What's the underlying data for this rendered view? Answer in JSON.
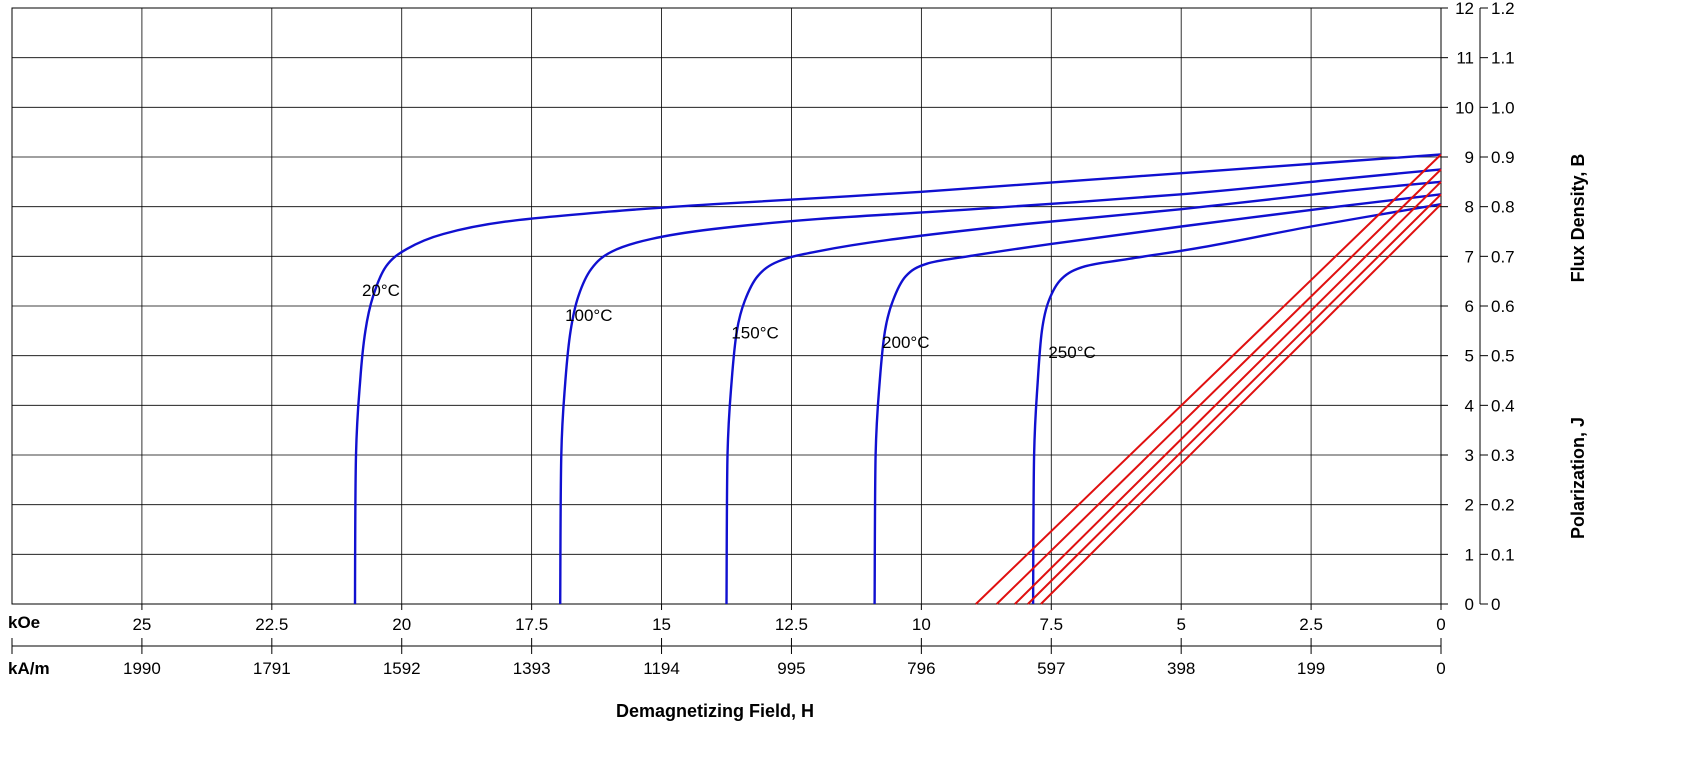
{
  "chart_data": {
    "type": "line",
    "title": "",
    "x_axis": {
      "title": "Demagnetizing Field, H",
      "direction": "reversed",
      "koe": {
        "unit_label": "kOe",
        "range": [
          27.5,
          0
        ],
        "ticks": [
          {
            "value": 25,
            "label": "25"
          },
          {
            "value": 22.5,
            "label": "22.5"
          },
          {
            "value": 20,
            "label": "20"
          },
          {
            "value": 17.5,
            "label": "17.5"
          },
          {
            "value": 15,
            "label": "15"
          },
          {
            "value": 12.5,
            "label": "12.5"
          },
          {
            "value": 10,
            "label": "10"
          },
          {
            "value": 7.5,
            "label": "7.5"
          },
          {
            "value": 5,
            "label": "5"
          },
          {
            "value": 2.5,
            "label": "2.5"
          },
          {
            "value": 0,
            "label": "0"
          }
        ]
      },
      "kam": {
        "unit_label": "kA/m",
        "ticks": [
          {
            "value_koe": 25,
            "label": "1990"
          },
          {
            "value_koe": 22.5,
            "label": "1791"
          },
          {
            "value_koe": 20,
            "label": "1592"
          },
          {
            "value_koe": 17.5,
            "label": "1393"
          },
          {
            "value_koe": 15,
            "label": "1194"
          },
          {
            "value_koe": 12.5,
            "label": "995"
          },
          {
            "value_koe": 10,
            "label": "796"
          },
          {
            "value_koe": 7.5,
            "label": "597"
          },
          {
            "value_koe": 5,
            "label": "398"
          },
          {
            "value_koe": 2.5,
            "label": "199"
          },
          {
            "value_koe": 0,
            "label": "0"
          }
        ]
      }
    },
    "y_axis": {
      "title_j": "Polarization,  J",
      "title_b": "Flux Density,  B",
      "range": [
        0,
        12
      ],
      "ticks_kg": [
        "0",
        "1",
        "2",
        "3",
        "4",
        "5",
        "6",
        "7",
        "8",
        "9",
        "10",
        "11",
        "12"
      ],
      "ticks_t": [
        "0",
        "0.1",
        "0.2",
        "0.3",
        "0.4",
        "0.5",
        "0.6",
        "0.7",
        "0.8",
        "0.9",
        "1.0",
        "1.1",
        "1.2"
      ]
    },
    "grid": true,
    "legend": "none",
    "colors": {
      "intrinsic": "#1010d0",
      "normal": "#e01010",
      "grid": "#000000"
    },
    "series": [
      {
        "name": "20°C",
        "kind": "intrinsic_J",
        "x": [
          20.9,
          20.88,
          20.8,
          20.7,
          20.55,
          20.3,
          19.9,
          19.2,
          18.0,
          16.0,
          14.0,
          10.0,
          6.0,
          2.0,
          0
        ],
        "y": [
          0,
          3.0,
          4.5,
          5.5,
          6.2,
          6.8,
          7.15,
          7.45,
          7.7,
          7.9,
          8.05,
          8.3,
          8.6,
          8.9,
          9.05
        ]
      },
      {
        "name": "100°C",
        "kind": "intrinsic_J",
        "x": [
          16.95,
          16.93,
          16.85,
          16.75,
          16.6,
          16.35,
          15.95,
          15.2,
          14.0,
          12.0,
          9.0,
          5.0,
          2.0,
          0
        ],
        "y": [
          0,
          3.0,
          4.5,
          5.5,
          6.2,
          6.75,
          7.1,
          7.35,
          7.55,
          7.75,
          7.95,
          8.25,
          8.55,
          8.75
        ]
      },
      {
        "name": "150°C",
        "kind": "intrinsic_J",
        "x": [
          13.75,
          13.73,
          13.65,
          13.55,
          13.4,
          13.15,
          12.75,
          12.0,
          10.5,
          8.0,
          5.0,
          2.0,
          0
        ],
        "y": [
          0,
          3.0,
          4.5,
          5.5,
          6.1,
          6.6,
          6.9,
          7.1,
          7.35,
          7.65,
          7.95,
          8.3,
          8.5
        ]
      },
      {
        "name": "200°C",
        "kind": "intrinsic_J",
        "x": [
          10.9,
          10.88,
          10.8,
          10.7,
          10.55,
          10.3,
          9.9,
          9.1,
          7.5,
          5.0,
          2.0,
          0
        ],
        "y": [
          0,
          3.0,
          4.5,
          5.5,
          6.1,
          6.6,
          6.85,
          7.0,
          7.25,
          7.6,
          8.0,
          8.25
        ]
      },
      {
        "name": "250°C",
        "kind": "intrinsic_J",
        "x": [
          7.85,
          7.83,
          7.76,
          7.68,
          7.55,
          7.3,
          6.85,
          6.0,
          4.5,
          2.5,
          0
        ],
        "y": [
          0,
          3.0,
          4.5,
          5.5,
          6.1,
          6.55,
          6.8,
          6.95,
          7.2,
          7.6,
          8.05
        ]
      },
      {
        "kind": "normal_B",
        "x": [
          0,
          8.95
        ],
        "y": [
          9.05,
          0
        ]
      },
      {
        "kind": "normal_B",
        "x": [
          0,
          8.55
        ],
        "y": [
          8.75,
          0
        ]
      },
      {
        "kind": "normal_B",
        "x": [
          0,
          8.2
        ],
        "y": [
          8.5,
          0
        ]
      },
      {
        "kind": "normal_B",
        "x": [
          0,
          7.95
        ],
        "y": [
          8.25,
          0
        ]
      },
      {
        "kind": "normal_B",
        "x": [
          0,
          7.7
        ],
        "y": [
          8.05,
          0
        ]
      }
    ],
    "annotations": [
      {
        "text": "20°C",
        "x": 20.4,
        "y": 6.2
      },
      {
        "text": "100°C",
        "x": 16.4,
        "y": 5.7
      },
      {
        "text": "150°C",
        "x": 13.2,
        "y": 5.35
      },
      {
        "text": "200°C",
        "x": 10.3,
        "y": 5.15
      },
      {
        "text": "250°C",
        "x": 7.1,
        "y": 4.95
      }
    ]
  }
}
